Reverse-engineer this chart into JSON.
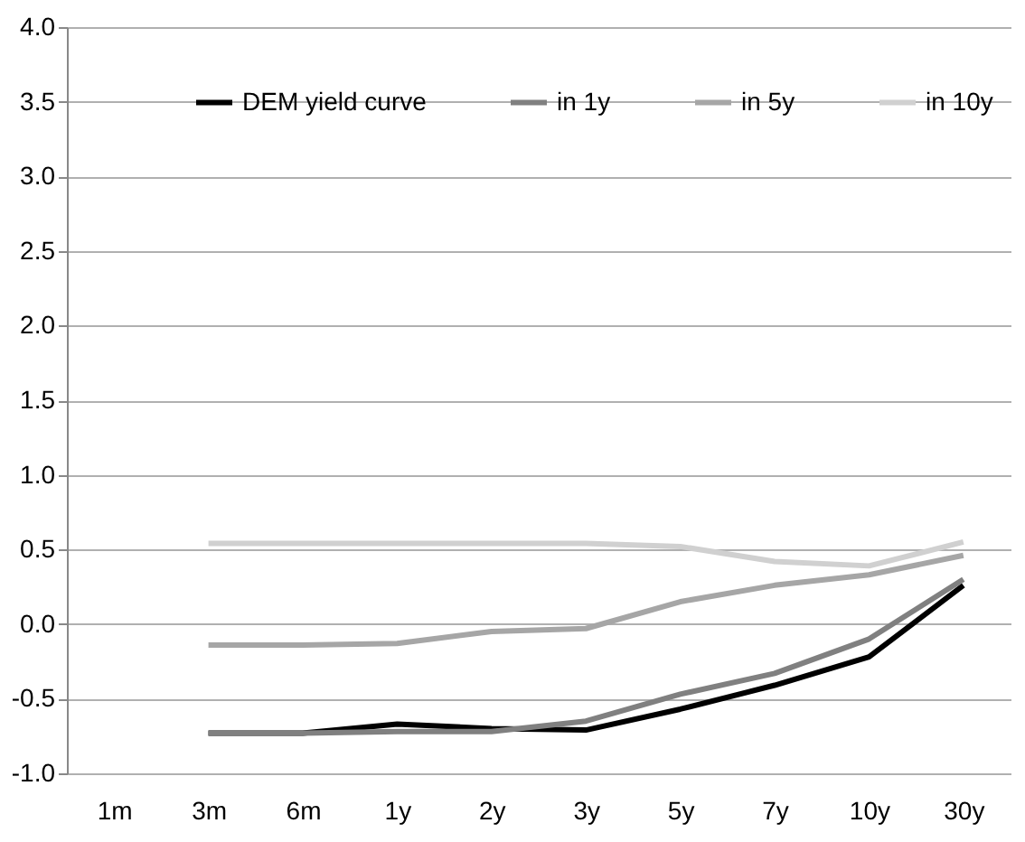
{
  "chart_data": {
    "type": "line",
    "categories": [
      "1m",
      "3m",
      "6m",
      "1y",
      "2y",
      "3y",
      "5y",
      "7y",
      "10y",
      "30y"
    ],
    "series": [
      {
        "name": "DEM yield curve",
        "color": "#000000",
        "values": [
          null,
          -0.73,
          -0.73,
          -0.67,
          -0.7,
          -0.71,
          -0.57,
          -0.41,
          -0.22,
          0.26
        ]
      },
      {
        "name": "in 1y",
        "color": "#808080",
        "values": [
          null,
          -0.73,
          -0.73,
          -0.72,
          -0.72,
          -0.65,
          -0.47,
          -0.33,
          -0.1,
          0.3
        ]
      },
      {
        "name": "in 5y",
        "color": "#a6a6a6",
        "values": [
          null,
          -0.14,
          -0.14,
          -0.13,
          -0.05,
          -0.03,
          0.15,
          0.26,
          0.33,
          0.46
        ]
      },
      {
        "name": "in 10y",
        "color": "#d0d0d0",
        "values": [
          null,
          0.54,
          0.54,
          0.54,
          0.54,
          0.54,
          0.52,
          0.42,
          0.39,
          0.55
        ]
      }
    ],
    "ylim": [
      -1.0,
      4.0
    ],
    "yticks": [
      {
        "value": -1,
        "label": "-1.0"
      },
      {
        "value": -0.5,
        "label": "-0.5"
      },
      {
        "value": 0,
        "label": "0.0"
      },
      {
        "value": 0.5,
        "label": "0.5"
      },
      {
        "value": 1,
        "label": "1.0"
      },
      {
        "value": 1.5,
        "label": "1.5"
      },
      {
        "value": 2,
        "label": "2.0"
      },
      {
        "value": 2.5,
        "label": "2.5"
      },
      {
        "value": 3,
        "label": "3.0"
      },
      {
        "value": 3.5,
        "label": "3.5"
      },
      {
        "value": 4,
        "label": "4.0"
      }
    ],
    "grid": "y",
    "legend": "top",
    "marker": "none",
    "line_style": "solid"
  }
}
